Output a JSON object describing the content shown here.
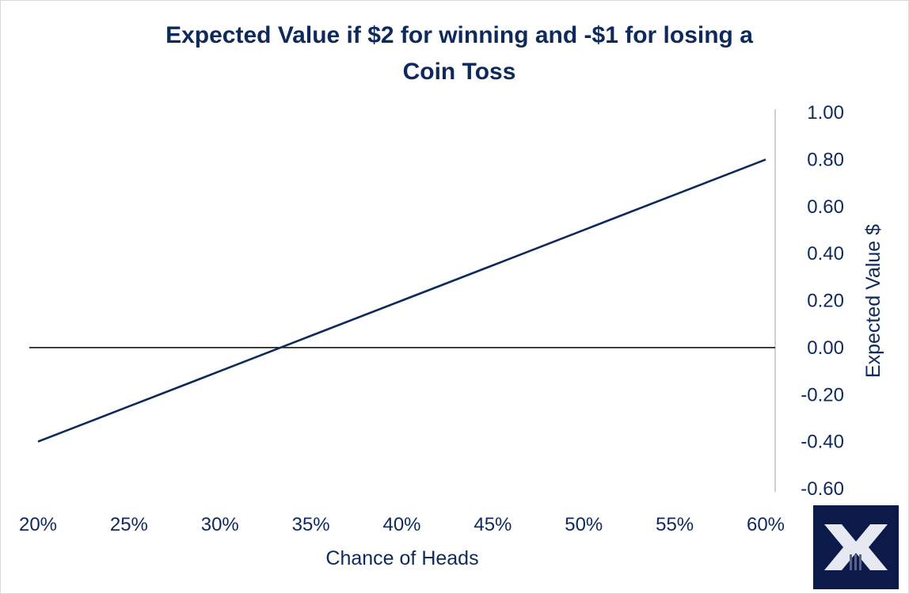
{
  "chart_data": {
    "type": "line",
    "title": "Expected Value if $2 for winning and -$1 for losing  a Coin Toss",
    "title_lines": [
      "Expected Value if $2 for winning and -$1 for losing  a",
      "Coin Toss"
    ],
    "xlabel": "Chance of Heads",
    "ylabel": "Expected Value $",
    "x": [
      0.2,
      0.25,
      0.3,
      0.35,
      0.4,
      0.45,
      0.5,
      0.55,
      0.6
    ],
    "x_tick_labels": [
      "20%",
      "25%",
      "30%",
      "35%",
      "40%",
      "45%",
      "50%",
      "55%",
      "60%"
    ],
    "y_tick_values": [
      1.0,
      0.8,
      0.6,
      0.4,
      0.2,
      0.0,
      -0.2,
      -0.4,
      -0.6
    ],
    "y_tick_labels": [
      "1.00",
      "0.80",
      "0.60",
      "0.40",
      "0.20",
      "0.00",
      "-0.20",
      "-0.40",
      "-0.60"
    ],
    "xlim": [
      0.2,
      0.6
    ],
    "ylim": [
      -0.6,
      1.0
    ],
    "series": [
      {
        "name": "Expected Value",
        "color": "#0e2a5c",
        "values": [
          -0.4,
          -0.25,
          -0.1,
          0.05,
          0.2,
          0.35,
          0.5,
          0.65,
          0.8
        ]
      }
    ],
    "reference_line_y": 0.0,
    "grid": false
  }
}
